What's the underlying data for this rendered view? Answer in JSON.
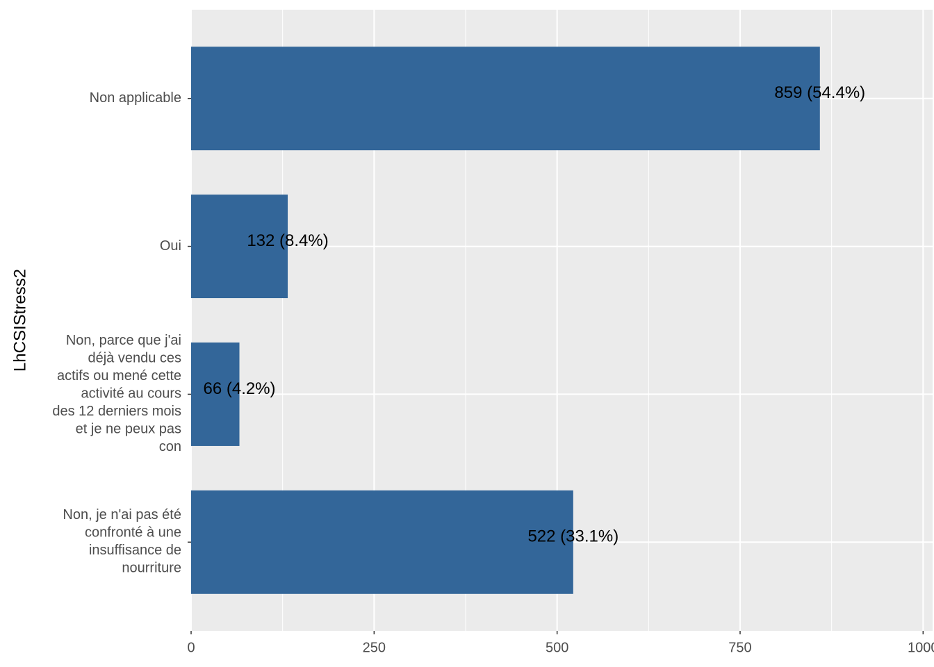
{
  "chart_data": {
    "type": "bar",
    "orientation": "horizontal",
    "y_axis_label": "LhCSIStress2",
    "categories": [
      "Non applicable",
      "Oui",
      "Non, parce que j'ai\ndéjà vendu ces\nactifs ou mené cette\nactivité au cours\ndes 12 derniers mois\net je ne peux pas\ncon",
      "Non, je n'ai pas été\nconfronté à une\ninsuffisance de\nnourriture"
    ],
    "values": [
      859,
      132,
      66,
      522
    ],
    "value_labels": [
      "859 (54.4%)",
      "132 (8.4%)",
      "66 (4.2%)",
      "522 (33.1%)"
    ],
    "color": "#336699",
    "xlim": [
      0,
      1013
    ],
    "xticks": [
      0,
      250,
      500,
      750,
      1000
    ],
    "minor_xticks": [
      125,
      375,
      625,
      875
    ],
    "grid": true
  }
}
